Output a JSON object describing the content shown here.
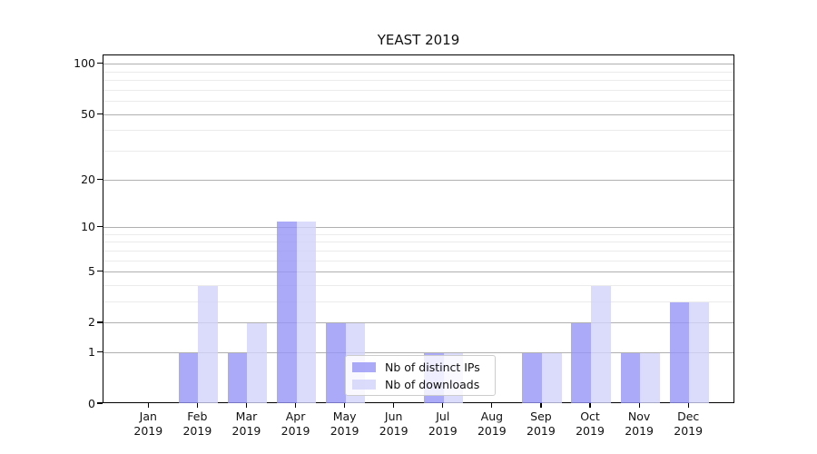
{
  "chart_data": {
    "type": "bar",
    "title": "YEAST 2019",
    "year": "2019",
    "categories": [
      "Jan",
      "Feb",
      "Mar",
      "Apr",
      "May",
      "Jun",
      "Jul",
      "Aug",
      "Sep",
      "Oct",
      "Nov",
      "Dec"
    ],
    "series": [
      {
        "name": "Nb of distinct IPs",
        "color": "rgba(149,149,246,0.8)",
        "values": [
          0,
          1,
          1,
          11,
          2,
          0,
          1,
          0,
          1,
          2,
          1,
          3
        ]
      },
      {
        "name": "Nb of downloads",
        "color": "rgba(210,210,250,0.8)",
        "values": [
          0,
          4,
          2,
          11,
          2,
          0,
          1,
          0,
          1,
          4,
          1,
          3
        ]
      }
    ],
    "yscale": "log1p",
    "ylim": [
      0,
      113
    ],
    "yticks": [
      {
        "v": 100,
        "label": "100"
      },
      {
        "v": 50,
        "label": "50"
      },
      {
        "v": 20,
        "label": "20"
      },
      {
        "v": 10,
        "label": "10"
      },
      {
        "v": 5,
        "label": "5"
      },
      {
        "v": 2,
        "label": "2"
      },
      {
        "v": 1,
        "label": "1"
      },
      {
        "v": 0,
        "label": "0"
      }
    ],
    "major_gridlines": [
      1,
      2,
      5,
      10,
      20,
      50,
      100
    ],
    "minor_gridlines": [
      3,
      4,
      6,
      7,
      8,
      9,
      30,
      40,
      60,
      70,
      80,
      90
    ],
    "grid": true,
    "legend_position": "lower-center",
    "colors": {
      "major_grid": "#b0b0b0",
      "minor_grid": "#ebebeb",
      "axis": "#000000",
      "text": "#111111"
    }
  }
}
